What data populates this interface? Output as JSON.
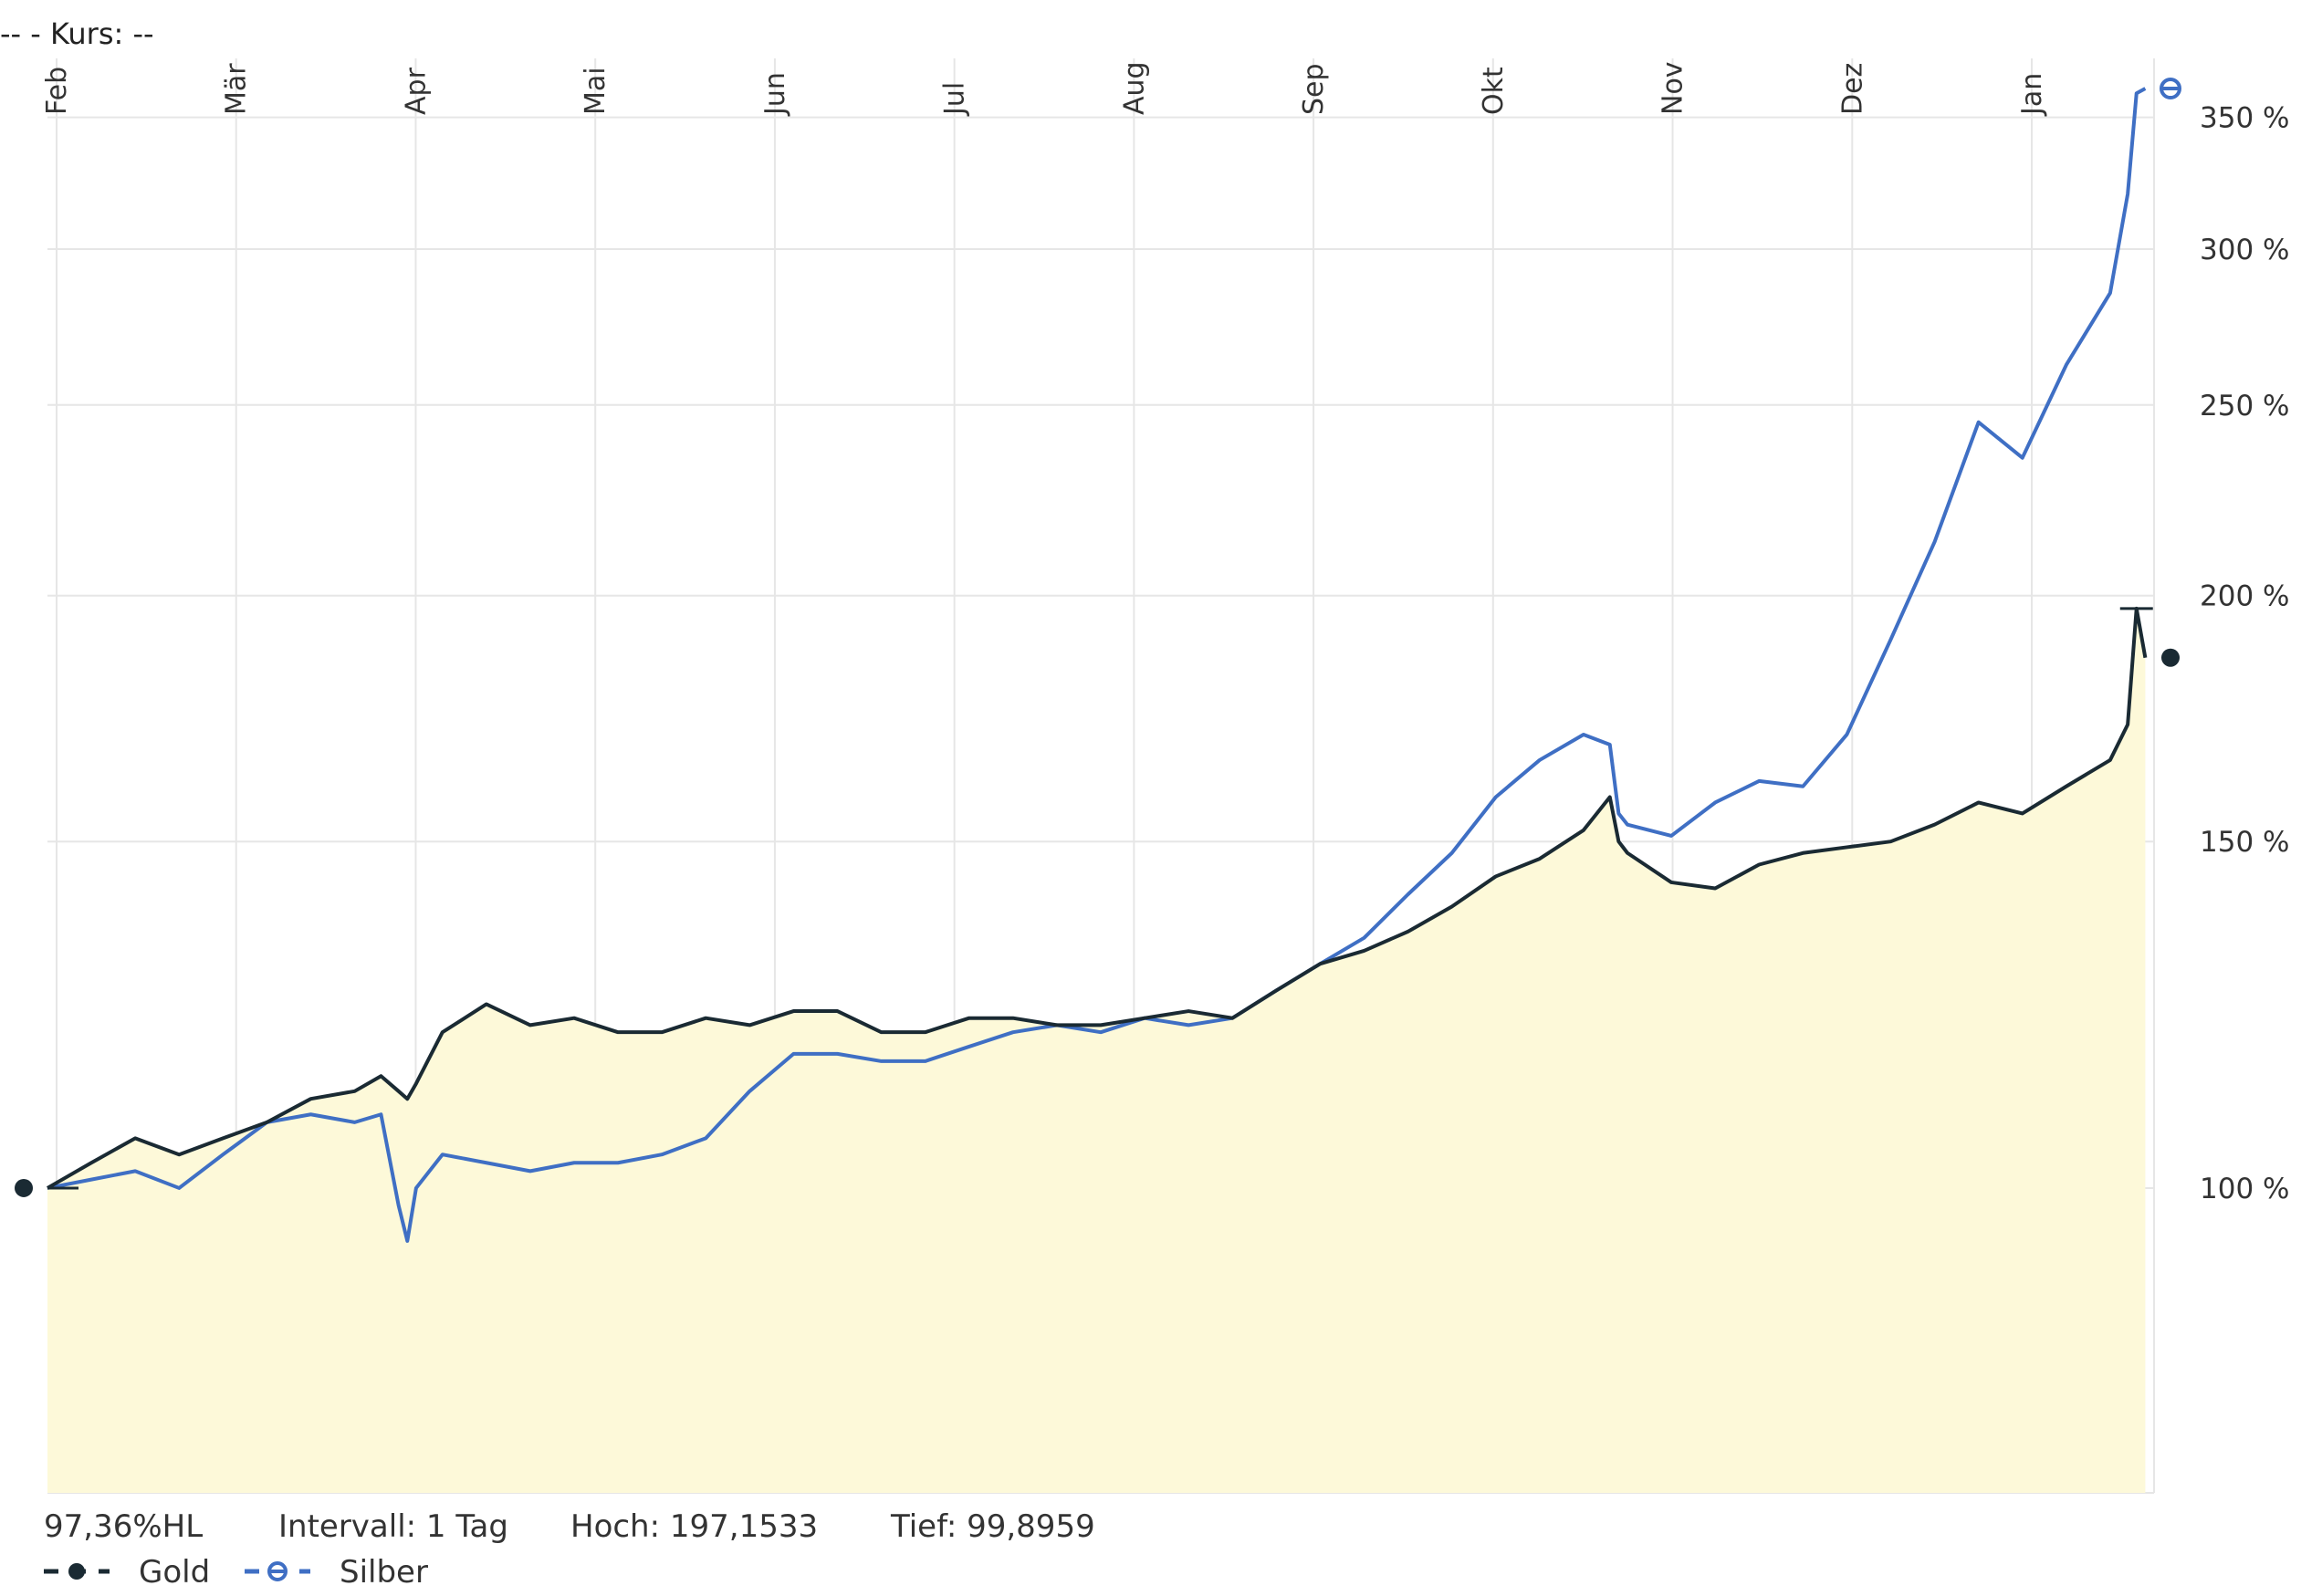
{
  "header": {
    "text": "--  - Kurs: --"
  },
  "footer": {
    "change": "97,36%HL",
    "interval": "Intervall: 1 Tag",
    "high": "Hoch: 197,1533",
    "low": "Tief: 99,8959"
  },
  "colors": {
    "gold": "#1a2a33",
    "silber": "#3f6fc4",
    "fill": "#fdf9d9",
    "grid": "#e6e6e6"
  },
  "chart_data": {
    "type": "line",
    "title": "",
    "xlabel": "",
    "ylabel": "",
    "scale": "log",
    "ylim": [
      70,
      375
    ],
    "month_labels": [
      "Feb",
      "Mär",
      "Apr",
      "Mai",
      "Jun",
      "Jul",
      "Aug",
      "Sep",
      "Okt",
      "Nov",
      "Dez",
      "Jan"
    ],
    "y_ticks": [
      {
        "value": 100,
        "label": "100 %"
      },
      {
        "value": 150,
        "label": "150 %"
      },
      {
        "value": 200,
        "label": "200 %"
      },
      {
        "value": 250,
        "label": "250 %"
      },
      {
        "value": 300,
        "label": "300 %"
      },
      {
        "value": 350,
        "label": "350 %"
      }
    ],
    "x": [
      0,
      0.25,
      0.5,
      0.75,
      1,
      1.25,
      1.5,
      1.75,
      1.9,
      2,
      2.05,
      2.1,
      2.25,
      2.5,
      2.75,
      3,
      3.25,
      3.5,
      3.75,
      4,
      4.25,
      4.5,
      4.75,
      5,
      5.25,
      5.5,
      5.75,
      6,
      6.25,
      6.5,
      6.75,
      7,
      7.25,
      7.5,
      7.75,
      8,
      8.25,
      8.5,
      8.75,
      8.9,
      8.95,
      9,
      9.25,
      9.5,
      9.75,
      10,
      10.25,
      10.5,
      10.75,
      11,
      11.25,
      11.5,
      11.75,
      11.85,
      11.9,
      11.95
    ],
    "series": [
      {
        "name": "Gold",
        "values": [
          100,
          103,
          106,
          104,
          106,
          108,
          111,
          112,
          114,
          112,
          111,
          113,
          120,
          124,
          121,
          122,
          120,
          120,
          122,
          121,
          123,
          123,
          120,
          120,
          122,
          122,
          121,
          121,
          122,
          123,
          122,
          126,
          130,
          132,
          135,
          139,
          144,
          147,
          152,
          158,
          150,
          148,
          143,
          142,
          146,
          148,
          149,
          150,
          153,
          157,
          155,
          160,
          165,
          172,
          197,
          186
        ]
      },
      {
        "name": "Silber",
        "values": [
          100,
          101,
          102,
          100,
          104,
          108,
          109,
          108,
          109,
          98,
          94,
          100,
          104,
          103,
          102,
          103,
          103,
          104,
          106,
          112,
          117,
          117,
          116,
          116,
          118,
          120,
          121,
          120,
          122,
          121,
          122,
          126,
          130,
          134,
          141,
          148,
          158,
          165,
          170,
          168,
          155,
          153,
          151,
          157,
          161,
          160,
          170,
          190,
          213,
          245,
          235,
          262,
          285,
          320,
          360,
          362
        ]
      }
    ],
    "legend": [
      {
        "label": "Gold"
      },
      {
        "label": "Silber"
      }
    ],
    "legend_position": "bottom-left"
  }
}
